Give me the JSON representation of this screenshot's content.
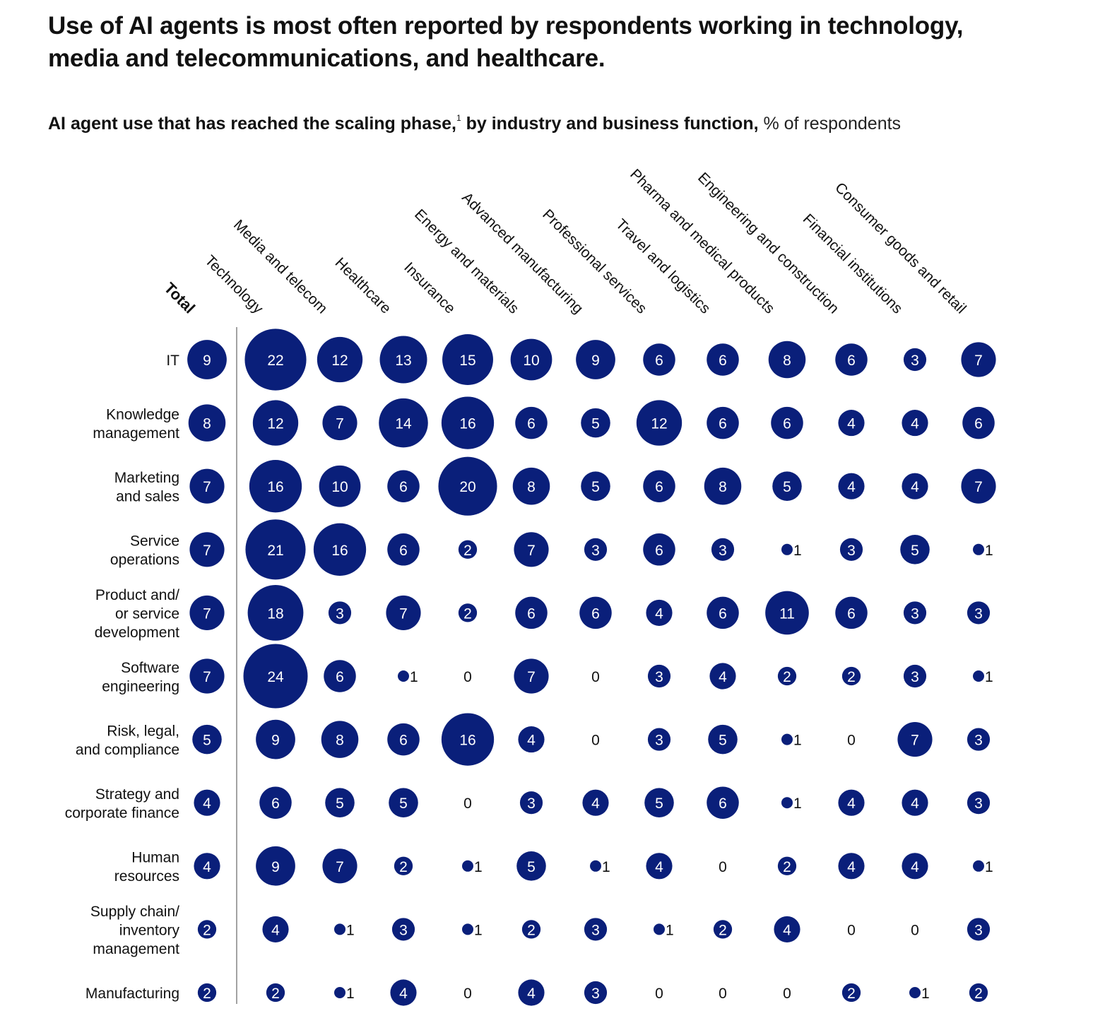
{
  "header": {
    "title": "Use of AI agents is most often reported by respondents working in technology, media and telecommunications, and healthcare.",
    "subtitle_bold": "AI agent use that has reached the scaling phase,",
    "footnote_marker": "1",
    "subtitle_bold_2": " by industry and business function,",
    "subtitle_units": " % of respondents"
  },
  "colors": {
    "bubble": "#0a1f7a",
    "bubble_text": "#ffffff",
    "text": "#111111",
    "divider": "#7a7a7a"
  },
  "chart_data": {
    "type": "bubble-matrix",
    "title": "Use of AI agents is most often reported by respondents working in technology, media and telecommunications, and healthcare.",
    "unit": "% of respondents",
    "columns": [
      "Total",
      "Technology",
      "Media and telecom",
      "Healthcare",
      "Insurance",
      "Energy and materials",
      "Advanced manufacturing",
      "Professional services",
      "Travel and logistics",
      "Pharma and medical products",
      "Engineering and construction",
      "Financial institutions",
      "Consumer goods and retail"
    ],
    "rows": [
      {
        "label": [
          "IT"
        ],
        "values": [
          9,
          22,
          12,
          13,
          15,
          10,
          9,
          6,
          6,
          8,
          6,
          3,
          7
        ]
      },
      {
        "label": [
          "Knowledge",
          "management"
        ],
        "values": [
          8,
          12,
          7,
          14,
          16,
          6,
          5,
          12,
          6,
          6,
          4,
          4,
          6
        ]
      },
      {
        "label": [
          "Marketing",
          "and sales"
        ],
        "values": [
          7,
          16,
          10,
          6,
          20,
          8,
          5,
          6,
          8,
          5,
          4,
          4,
          7
        ]
      },
      {
        "label": [
          "Service",
          "operations"
        ],
        "values": [
          7,
          21,
          16,
          6,
          2,
          7,
          3,
          6,
          3,
          1,
          3,
          5,
          1
        ]
      },
      {
        "label": [
          "Product and/",
          "or service",
          "development"
        ],
        "values": [
          7,
          18,
          3,
          7,
          2,
          6,
          6,
          4,
          6,
          11,
          6,
          3,
          3
        ]
      },
      {
        "label": [
          "Software",
          "engineering"
        ],
        "values": [
          7,
          24,
          6,
          1,
          0,
          7,
          0,
          3,
          4,
          2,
          2,
          3,
          1
        ]
      },
      {
        "label": [
          "Risk, legal,",
          "and compliance"
        ],
        "values": [
          5,
          9,
          8,
          6,
          16,
          4,
          0,
          3,
          5,
          1,
          0,
          7,
          3
        ]
      },
      {
        "label": [
          "Strategy and",
          "corporate finance"
        ],
        "values": [
          4,
          6,
          5,
          5,
          0,
          3,
          4,
          5,
          6,
          1,
          4,
          4,
          3
        ]
      },
      {
        "label": [
          "Human",
          "resources"
        ],
        "values": [
          4,
          9,
          7,
          2,
          1,
          5,
          1,
          4,
          0,
          2,
          4,
          4,
          1
        ]
      },
      {
        "label": [
          "Supply chain/",
          "inventory",
          "management"
        ],
        "values": [
          2,
          4,
          1,
          3,
          1,
          2,
          3,
          1,
          2,
          4,
          0,
          0,
          3
        ]
      },
      {
        "label": [
          "Manufacturing"
        ],
        "values": [
          2,
          2,
          1,
          4,
          0,
          4,
          3,
          0,
          0,
          0,
          2,
          1,
          2
        ]
      }
    ],
    "max_value": 24
  }
}
